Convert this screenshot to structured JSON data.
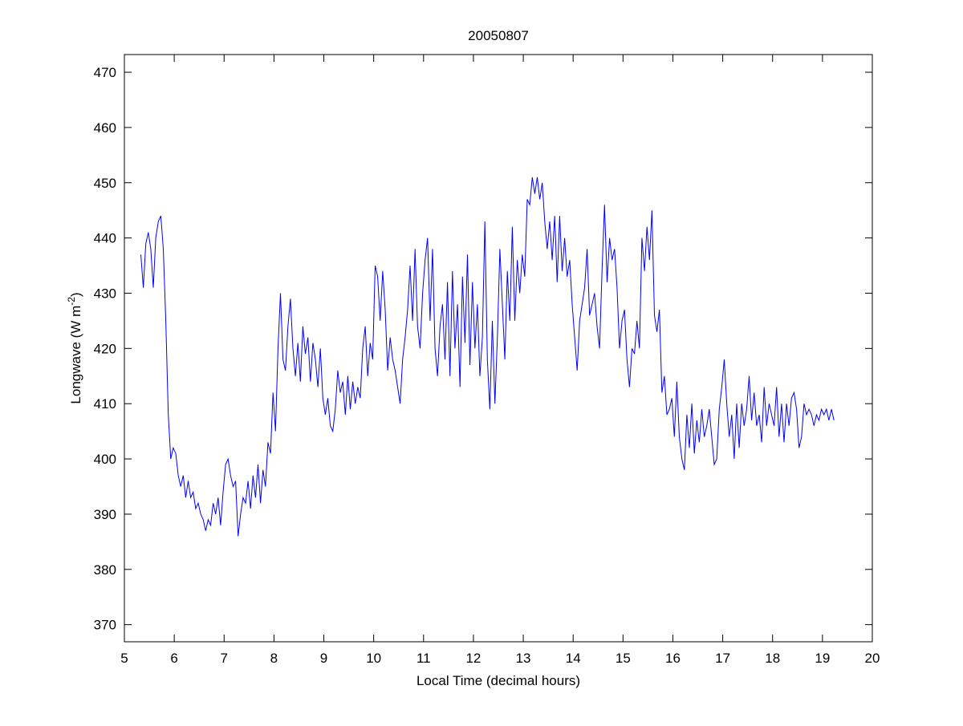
{
  "chart_data": {
    "type": "line",
    "title": "20050807",
    "xlabel": "Local Time (decimal hours)",
    "ylabel": "Longwave (W m",
    "ylabel_sup": "-2",
    "ylabel_end": ")",
    "xlim": [
      5,
      20
    ],
    "ylim": [
      366.9,
      473.2
    ],
    "xticks": [
      5,
      6,
      7,
      8,
      9,
      10,
      11,
      12,
      13,
      14,
      15,
      16,
      17,
      18,
      19,
      20
    ],
    "yticks": [
      370,
      380,
      390,
      400,
      410,
      420,
      430,
      440,
      450,
      460,
      470
    ],
    "grid": false,
    "line_color": "#0000ff",
    "series": [
      {
        "name": "Longwave",
        "x_start": 5.33,
        "x_step": 0.05,
        "values": [
          437,
          431,
          439,
          441,
          438,
          431,
          440,
          443,
          444,
          438,
          425,
          408,
          400,
          402,
          401,
          397,
          395,
          397,
          393,
          396,
          393,
          394,
          391,
          392,
          390,
          389,
          387,
          389,
          388,
          392,
          390,
          393,
          388,
          394,
          399,
          400,
          397,
          395,
          396,
          386,
          390,
          393,
          392,
          396,
          391,
          397,
          393,
          399,
          392,
          398,
          395,
          403,
          401,
          412,
          405,
          420,
          430,
          418,
          416,
          424,
          429,
          420,
          415,
          421,
          414,
          424,
          419,
          422,
          414,
          421,
          418,
          413,
          420,
          411,
          408,
          411,
          406,
          405,
          409,
          416,
          412,
          414,
          408,
          415,
          409,
          414,
          410,
          413,
          411,
          420,
          424,
          415,
          421,
          418,
          435,
          433,
          425,
          434,
          427,
          416,
          422,
          418,
          416,
          413,
          410,
          418,
          422,
          427,
          435,
          425,
          438,
          424,
          420,
          430,
          436,
          440,
          425,
          438,
          420,
          415,
          424,
          428,
          418,
          432,
          415,
          434,
          420,
          428,
          413,
          433,
          421,
          437,
          417,
          432,
          420,
          428,
          415,
          422,
          443,
          418,
          409,
          425,
          410,
          422,
          438,
          428,
          418,
          434,
          425,
          442,
          425,
          436,
          430,
          437,
          433,
          447,
          446,
          451,
          448,
          451,
          447,
          450,
          443,
          438,
          443,
          436,
          444,
          432,
          444,
          434,
          440,
          433,
          436,
          428,
          422,
          416,
          425,
          428,
          431,
          438,
          426,
          428,
          430,
          424,
          420,
          434,
          446,
          432,
          440,
          436,
          438,
          431,
          420,
          425,
          427,
          418,
          413,
          420,
          419,
          425,
          420,
          440,
          434,
          442,
          436,
          445,
          426,
          423,
          427,
          412,
          415,
          408,
          409,
          411,
          404,
          414,
          404,
          400,
          398,
          408,
          402,
          410,
          401,
          407,
          403,
          409,
          404,
          406,
          409,
          404,
          399,
          400,
          409,
          413,
          418,
          410,
          404,
          408,
          400,
          410,
          402,
          410,
          406,
          409,
          415,
          407,
          412,
          406,
          408,
          403,
          413,
          406,
          410,
          408,
          406,
          413,
          404,
          410,
          403,
          410,
          406,
          411,
          412,
          409,
          402,
          404,
          410,
          408,
          409,
          408,
          406,
          408,
          407,
          409,
          408,
          409,
          407,
          409,
          407
        ]
      }
    ]
  }
}
